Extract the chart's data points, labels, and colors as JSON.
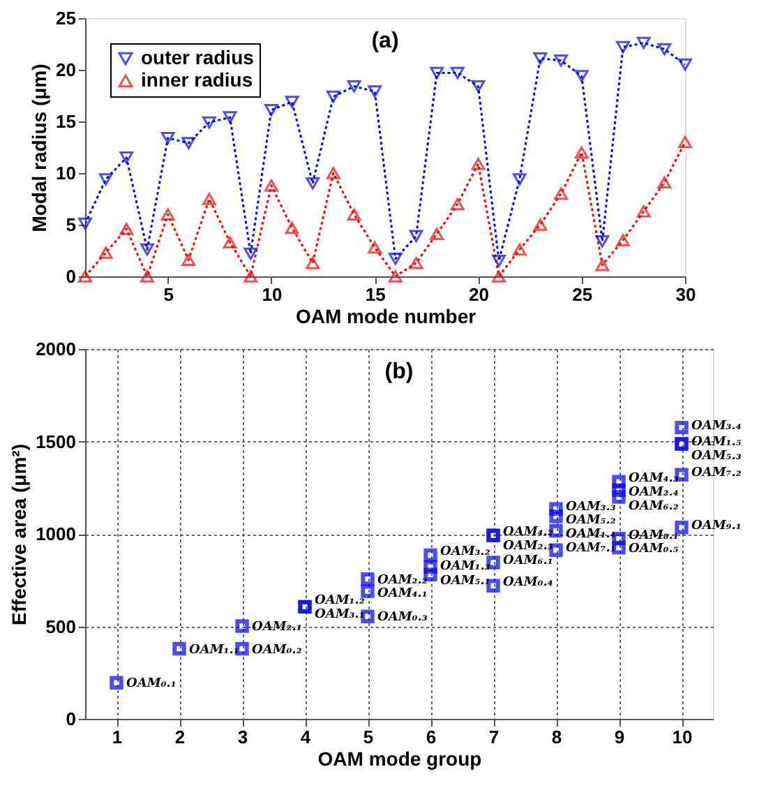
{
  "chart_data": [
    {
      "type": "line",
      "xlabel": "OAM mode number",
      "ylabel": "Modal radius (μm)",
      "annotations": [
        "(a)"
      ],
      "x": [
        1,
        2,
        3,
        4,
        5,
        6,
        7,
        8,
        9,
        10,
        11,
        12,
        13,
        14,
        15,
        16,
        17,
        18,
        19,
        20,
        21,
        22,
        23,
        24,
        25,
        26,
        27,
        28,
        29,
        30
      ],
      "series": [
        {
          "name": "outer radius",
          "color": "#0000ff",
          "marker": "triangle-down",
          "values": [
            5.1,
            9.4,
            11.5,
            2.6,
            13.4,
            12.9,
            14.9,
            15.4,
            2.2,
            16.1,
            16.9,
            9.0,
            17.4,
            18.4,
            17.9,
            1.7,
            3.9,
            19.7,
            19.7,
            18.4,
            1.5,
            9.4,
            21.1,
            20.9,
            19.4,
            3.4,
            22.2,
            22.6,
            22.0,
            20.5
          ]
        },
        {
          "name": "inner radius",
          "color": "#ff0000",
          "marker": "triangle",
          "values": [
            0,
            2.3,
            4.6,
            0,
            6.0,
            1.6,
            7.5,
            3.3,
            0,
            8.8,
            4.7,
            1.3,
            10.0,
            6.0,
            2.8,
            0,
            1.3,
            4.1,
            7.0,
            10.9,
            0,
            2.6,
            5.0,
            8.0,
            12.0,
            1.1,
            3.5,
            6.3,
            9.1,
            13.0
          ]
        }
      ],
      "xlim": [
        1,
        30
      ],
      "xticks": [
        5,
        10,
        15,
        20,
        25,
        30
      ],
      "ylim": [
        0,
        25
      ],
      "yticks": [
        0,
        5,
        10,
        15,
        20,
        25
      ],
      "line_style": "dotted",
      "grid": false,
      "legend": "top left"
    },
    {
      "type": "scatter",
      "xlabel": "OAM mode group",
      "ylabel": "Effective area (μm²)",
      "x": [
        1,
        2,
        3,
        3,
        4,
        4,
        5,
        5,
        5,
        6,
        6,
        6,
        7,
        7,
        7,
        7,
        8,
        8,
        8,
        8,
        9,
        9,
        9,
        9,
        9,
        10,
        10,
        10,
        10,
        10
      ],
      "values": [
        195,
        379,
        502,
        379,
        606,
        606,
        756,
        690,
        554,
        885,
        822,
        780,
        992,
        992,
        845,
        720,
        1135,
        1095,
        1017,
        912,
        1282,
        1237,
        1200,
        975,
        925,
        1575,
        1487,
        1487,
        1320,
        1035
      ],
      "color": "#0000ff",
      "marker": "square",
      "xlim": [
        0.5,
        10.5
      ],
      "xticks": [
        1,
        2,
        3,
        4,
        5,
        6,
        7,
        8,
        9,
        10
      ],
      "ylim": [
        0,
        2000
      ],
      "yticks": [
        0,
        500,
        {
          "value": 1000,
          "label": "1000"
        },
        {
          "value": 1500,
          "label": "1500"
        },
        {
          "value": 2000,
          "label": "2000"
        }
      ],
      "grid": true,
      "annotations": [
        "(b)",
        {
          "text": "OAM₀.₁",
          "x": 1,
          "y": 195
        },
        {
          "text": "OAM₁.₁",
          "x": 2,
          "y": 379
        },
        {
          "text": "OAM₂.₁",
          "x": 3,
          "y": 502
        },
        {
          "text": "OAM₀.₂",
          "x": 3,
          "y": 379
        },
        {
          "text": "OAM₁.₂",
          "x": 4,
          "y": 606
        },
        {
          "text": "OAM₃.₁",
          "x": 4,
          "y": 606
        },
        {
          "text": "OAM₂.₂",
          "x": 5,
          "y": 756
        },
        {
          "text": "OAM₄.₁",
          "x": 5,
          "y": 690
        },
        {
          "text": "OAM₀.₃",
          "x": 5,
          "y": 554
        },
        {
          "text": "OAM₃.₂",
          "x": 6,
          "y": 885
        },
        {
          "text": "OAM₁.₃",
          "x": 6,
          "y": 822
        },
        {
          "text": "OAM₅.₁",
          "x": 6,
          "y": 780
        },
        {
          "text": "OAM₄.₂",
          "x": 7,
          "y": 992
        },
        {
          "text": "OAM₂.₃",
          "x": 7,
          "y": 992
        },
        {
          "text": "OAM₆.₁",
          "x": 7,
          "y": 845
        },
        {
          "text": "OAM₀.₄",
          "x": 7,
          "y": 720
        },
        {
          "text": "OAM₃.₃",
          "x": 8,
          "y": 1135
        },
        {
          "text": "OAM₅.₂",
          "x": 8,
          "y": 1095
        },
        {
          "text": "OAM₁.₄",
          "x": 8,
          "y": 1017
        },
        {
          "text": "OAM₇.₁",
          "x": 8,
          "y": 912
        },
        {
          "text": "OAM₄.₃",
          "x": 9,
          "y": 1282
        },
        {
          "text": "OAM₂.₄",
          "x": 9,
          "y": 1237
        },
        {
          "text": "OAM₆.₂",
          "x": 9,
          "y": 1200
        },
        {
          "text": "OAM₈.₁",
          "x": 9,
          "y": 975
        },
        {
          "text": "OAM₀.₅",
          "x": 9,
          "y": 925
        },
        {
          "text": "OAM₃.₄",
          "x": 10,
          "y": 1575
        },
        {
          "text": "OAM₁.₅",
          "x": 10,
          "y": 1487
        },
        {
          "text": "OAM₅.₃",
          "x": 10,
          "y": 1487
        },
        {
          "text": "OAM₇.₂",
          "x": 10,
          "y": 1320
        },
        {
          "text": "OAM₉.₁",
          "x": 10,
          "y": 1035
        }
      ]
    }
  ]
}
